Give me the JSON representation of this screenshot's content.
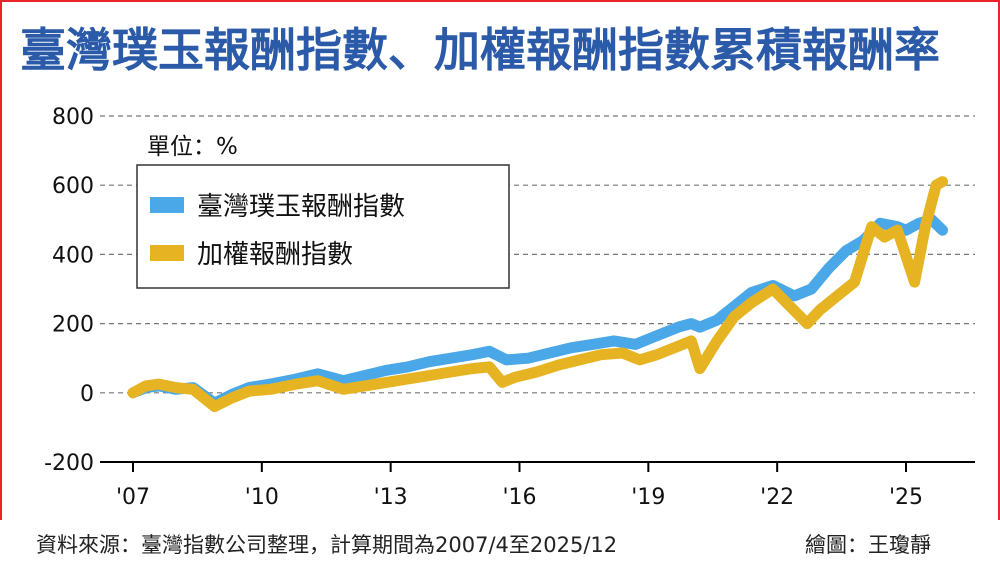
{
  "title": "臺灣璞玉報酬指數、加權報酬指數累積報酬率",
  "unit_label": "單位：%",
  "source": "資料來源：臺灣指數公司整理，計算期間為2007/4至2025/12",
  "credit": "繪圖：王瓊靜",
  "colors": {
    "puyu": "#4aa8e8",
    "taiex": "#e6b422",
    "frame": "#e8242a",
    "title": "#2a5aa8"
  },
  "chart_data": {
    "type": "line",
    "ylim": [
      -200,
      800
    ],
    "yticks": [
      "800",
      "600",
      "400",
      "200",
      "0",
      "-200"
    ],
    "yticks_values": [
      800,
      600,
      400,
      200,
      0,
      -200
    ],
    "xticks": [
      "'07",
      "'10",
      "'13",
      "'16",
      "'19",
      "'22",
      "'25"
    ],
    "xticks_years": [
      2007,
      2010,
      2013,
      2016,
      2019,
      2022,
      2025
    ],
    "grid": true,
    "legend_position": "top-left",
    "series": [
      {
        "name": "臺灣璞玉報酬指數",
        "color": "#4aa8e8",
        "points": [
          [
            2007.0,
            0
          ],
          [
            2007.3,
            15
          ],
          [
            2007.6,
            20
          ],
          [
            2008.0,
            10
          ],
          [
            2008.4,
            15
          ],
          [
            2008.9,
            -30
          ],
          [
            2009.3,
            -5
          ],
          [
            2009.7,
            15
          ],
          [
            2010.2,
            25
          ],
          [
            2010.8,
            40
          ],
          [
            2011.3,
            55
          ],
          [
            2011.9,
            35
          ],
          [
            2012.4,
            50
          ],
          [
            2012.9,
            65
          ],
          [
            2013.4,
            75
          ],
          [
            2013.9,
            90
          ],
          [
            2014.4,
            100
          ],
          [
            2014.9,
            110
          ],
          [
            2015.3,
            120
          ],
          [
            2015.7,
            95
          ],
          [
            2016.2,
            100
          ],
          [
            2016.7,
            115
          ],
          [
            2017.2,
            130
          ],
          [
            2017.7,
            140
          ],
          [
            2018.2,
            150
          ],
          [
            2018.7,
            140
          ],
          [
            2019.2,
            165
          ],
          [
            2019.7,
            190
          ],
          [
            2020.0,
            200
          ],
          [
            2020.2,
            190
          ],
          [
            2020.6,
            210
          ],
          [
            2021.0,
            250
          ],
          [
            2021.4,
            290
          ],
          [
            2021.9,
            310
          ],
          [
            2022.4,
            280
          ],
          [
            2022.8,
            300
          ],
          [
            2023.2,
            360
          ],
          [
            2023.6,
            410
          ],
          [
            2024.0,
            440
          ],
          [
            2024.4,
            490
          ],
          [
            2024.8,
            480
          ],
          [
            2025.0,
            470
          ],
          [
            2025.3,
            490
          ],
          [
            2025.6,
            500
          ],
          [
            2025.85,
            470
          ]
        ]
      },
      {
        "name": "加權報酬指數",
        "color": "#e6b422",
        "points": [
          [
            2007.0,
            0
          ],
          [
            2007.3,
            20
          ],
          [
            2007.6,
            25
          ],
          [
            2008.0,
            15
          ],
          [
            2008.4,
            10
          ],
          [
            2008.9,
            -40
          ],
          [
            2009.3,
            -15
          ],
          [
            2009.7,
            5
          ],
          [
            2010.2,
            10
          ],
          [
            2010.8,
            25
          ],
          [
            2011.3,
            35
          ],
          [
            2011.9,
            10
          ],
          [
            2012.4,
            20
          ],
          [
            2012.9,
            30
          ],
          [
            2013.4,
            40
          ],
          [
            2013.9,
            50
          ],
          [
            2014.4,
            60
          ],
          [
            2014.9,
            70
          ],
          [
            2015.3,
            75
          ],
          [
            2015.6,
            30
          ],
          [
            2015.9,
            45
          ],
          [
            2016.4,
            60
          ],
          [
            2016.9,
            80
          ],
          [
            2017.4,
            95
          ],
          [
            2017.9,
            110
          ],
          [
            2018.4,
            115
          ],
          [
            2018.8,
            95
          ],
          [
            2019.2,
            110
          ],
          [
            2019.7,
            135
          ],
          [
            2020.0,
            150
          ],
          [
            2020.2,
            70
          ],
          [
            2020.6,
            150
          ],
          [
            2021.0,
            220
          ],
          [
            2021.4,
            260
          ],
          [
            2021.9,
            300
          ],
          [
            2022.3,
            250
          ],
          [
            2022.7,
            200
          ],
          [
            2023.0,
            240
          ],
          [
            2023.4,
            280
          ],
          [
            2023.8,
            320
          ],
          [
            2024.2,
            480
          ],
          [
            2024.5,
            450
          ],
          [
            2024.8,
            470
          ],
          [
            2025.2,
            320
          ],
          [
            2025.45,
            480
          ],
          [
            2025.7,
            600
          ],
          [
            2025.85,
            610
          ]
        ]
      }
    ]
  }
}
